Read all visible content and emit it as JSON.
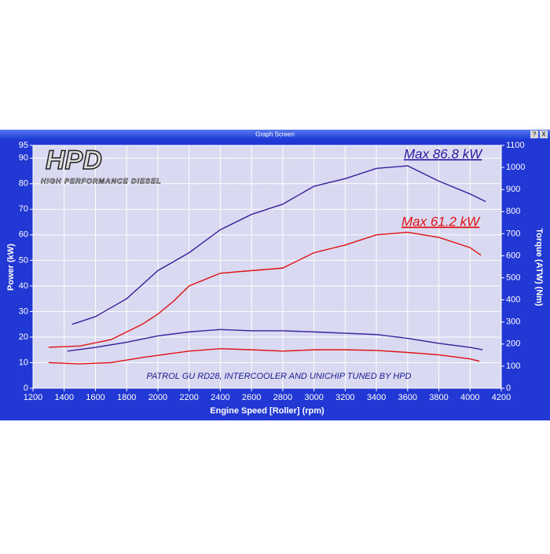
{
  "window": {
    "title": "Graph Screen",
    "help_button": "?",
    "close_button": "X"
  },
  "chart_data": {
    "type": "line",
    "logo": "HPD",
    "logo_subtitle": "HIGH PERFORMANCE DIESEL",
    "annotations": [
      "Max 86.8 kW",
      "Max 61.2 kW",
      "PATROL GU RD28, INTERCOOLER AND UNICHIP TUNED BY HPD"
    ],
    "x_label": "Engine Speed [Roller] (rpm)",
    "y_label": "Power (kW)",
    "y2_label": "Torque (ATW) (Nm)",
    "xlim": [
      1200,
      4200
    ],
    "xticks": [
      1200,
      1400,
      1600,
      1800,
      2000,
      2200,
      2400,
      2600,
      2800,
      3000,
      3200,
      3400,
      3600,
      3800,
      4000,
      4200
    ],
    "ylim": [
      0,
      95
    ],
    "yticks": [
      0,
      10,
      20,
      30,
      40,
      50,
      60,
      70,
      80,
      90,
      95
    ],
    "y2lim": [
      0,
      1100
    ],
    "y2ticks": [
      0,
      100,
      200,
      300,
      400,
      500,
      600,
      700,
      800,
      900,
      1000,
      1100
    ],
    "grid": true,
    "series": [
      {
        "color": "#3a1f9a",
        "x": [
          1450,
          1600,
          1800,
          2000,
          2200,
          2400,
          2600,
          2800,
          3000,
          3200,
          3400,
          3600,
          3800,
          4000,
          4100
        ],
        "values": [
          25,
          28,
          35,
          46,
          53,
          62,
          68,
          72,
          79,
          82,
          86,
          87,
          81,
          76,
          73
        ]
      },
      {
        "color": "#e01010",
        "x": [
          1300,
          1500,
          1700,
          1900,
          2000,
          2100,
          2200,
          2400,
          2600,
          2800,
          3000,
          3200,
          3400,
          3600,
          3800,
          4000,
          4070
        ],
        "values": [
          16,
          16.5,
          19,
          25,
          29,
          34,
          40,
          45,
          46,
          47,
          53,
          56,
          60,
          61,
          59,
          55,
          52
        ]
      },
      {
        "color": "#3a1f9a",
        "axis": "y2",
        "x": [
          1420,
          1600,
          1800,
          2000,
          2200,
          2400,
          2600,
          2800,
          3000,
          3200,
          3400,
          3600,
          3800,
          4000,
          4080
        ],
        "values": [
          168,
          185,
          208,
          237,
          255,
          266,
          260,
          260,
          255,
          249,
          243,
          226,
          203,
          185,
          174
        ]
      },
      {
        "color": "#e01010",
        "axis": "y2",
        "x": [
          1300,
          1500,
          1700,
          1900,
          2200,
          2400,
          2600,
          2800,
          3000,
          3200,
          3400,
          3600,
          3800,
          4000,
          4060
        ],
        "values": [
          116,
          110,
          116,
          139,
          168,
          179,
          174,
          168,
          174,
          174,
          171,
          162,
          151,
          133,
          122
        ]
      }
    ]
  }
}
